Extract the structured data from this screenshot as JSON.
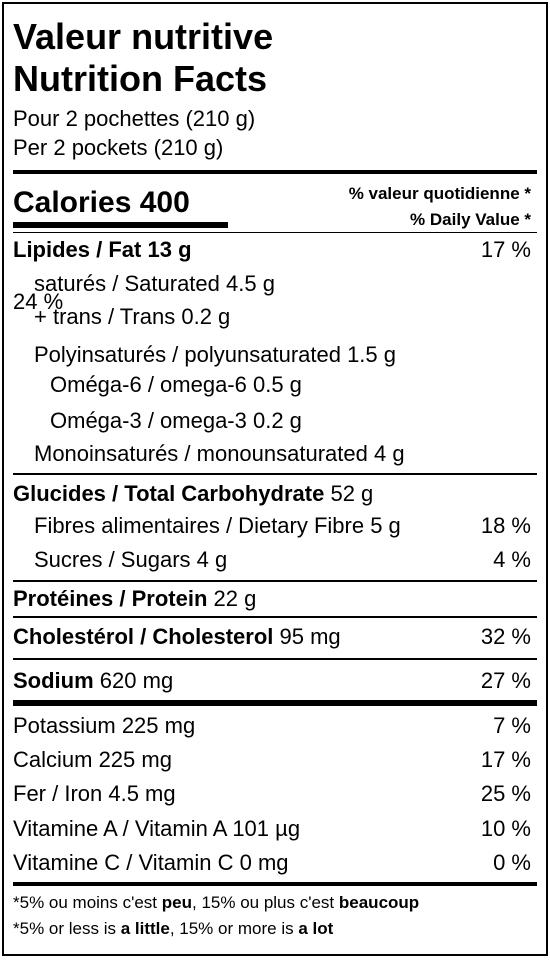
{
  "header": {
    "title_fr": "Valeur nutritive",
    "title_en": "Nutrition Facts",
    "serving_fr": "Pour 2 pochettes (210 g)",
    "serving_en": "Per 2 pockets (210 g)"
  },
  "calories": {
    "label": "Calories 400",
    "dv_fr": "% valeur quotidienne *",
    "dv_en": "% Daily Value *"
  },
  "fat": {
    "name": "Lipides / Fat",
    "amount": "13 g",
    "pct": "17 %",
    "saturated": "saturés / Saturated 4.5 g",
    "trans": "+ trans / Trans 0.2 g",
    "sat_trans_pct": "24 %",
    "poly": "Polyinsaturés / polyunsaturated 1.5 g",
    "omega6": "Oméga-6 / omega-6 0.5 g",
    "omega3": "Oméga-3 / omega-3 0.2 g",
    "mono": "Monoinsaturés / monounsaturated 4 g"
  },
  "carbs": {
    "name": "Glucides / Total Carbohydrate",
    "amount": "52 g",
    "fibre": "Fibres alimentaires / Dietary Fibre 5 g",
    "fibre_pct": "18 %",
    "sugars": "Sucres / Sugars 4 g",
    "sugars_pct": "4 %"
  },
  "protein": {
    "name": "Protéines / Protein",
    "amount": "22 g"
  },
  "cholesterol": {
    "name": "Cholestérol / Cholesterol",
    "amount": "95 mg",
    "pct": "32 %"
  },
  "sodium": {
    "name": "Sodium",
    "amount": "620 mg",
    "pct": "27 %"
  },
  "minerals": [
    {
      "name": "Potassium 225 mg",
      "pct": "7 %"
    },
    {
      "name": "Calcium 225 mg",
      "pct": "17 %"
    },
    {
      "name": "Fer / Iron 4.5 mg",
      "pct": "25 %"
    },
    {
      "name": "Vitamine A / Vitamin A 101 µg",
      "pct": "10 %"
    },
    {
      "name": "Vitamine C / Vitamin C 0 mg",
      "pct": "0 %"
    }
  ],
  "footnote": {
    "fr_a": "*5% ou moins c'est ",
    "fr_b": "peu",
    "fr_c": ", 15% ou plus c'est ",
    "fr_d": "beaucoup",
    "en_a": "*5% or less is ",
    "en_b": "a little",
    "en_c": ", 15% or more is ",
    "en_d": "a lot"
  }
}
